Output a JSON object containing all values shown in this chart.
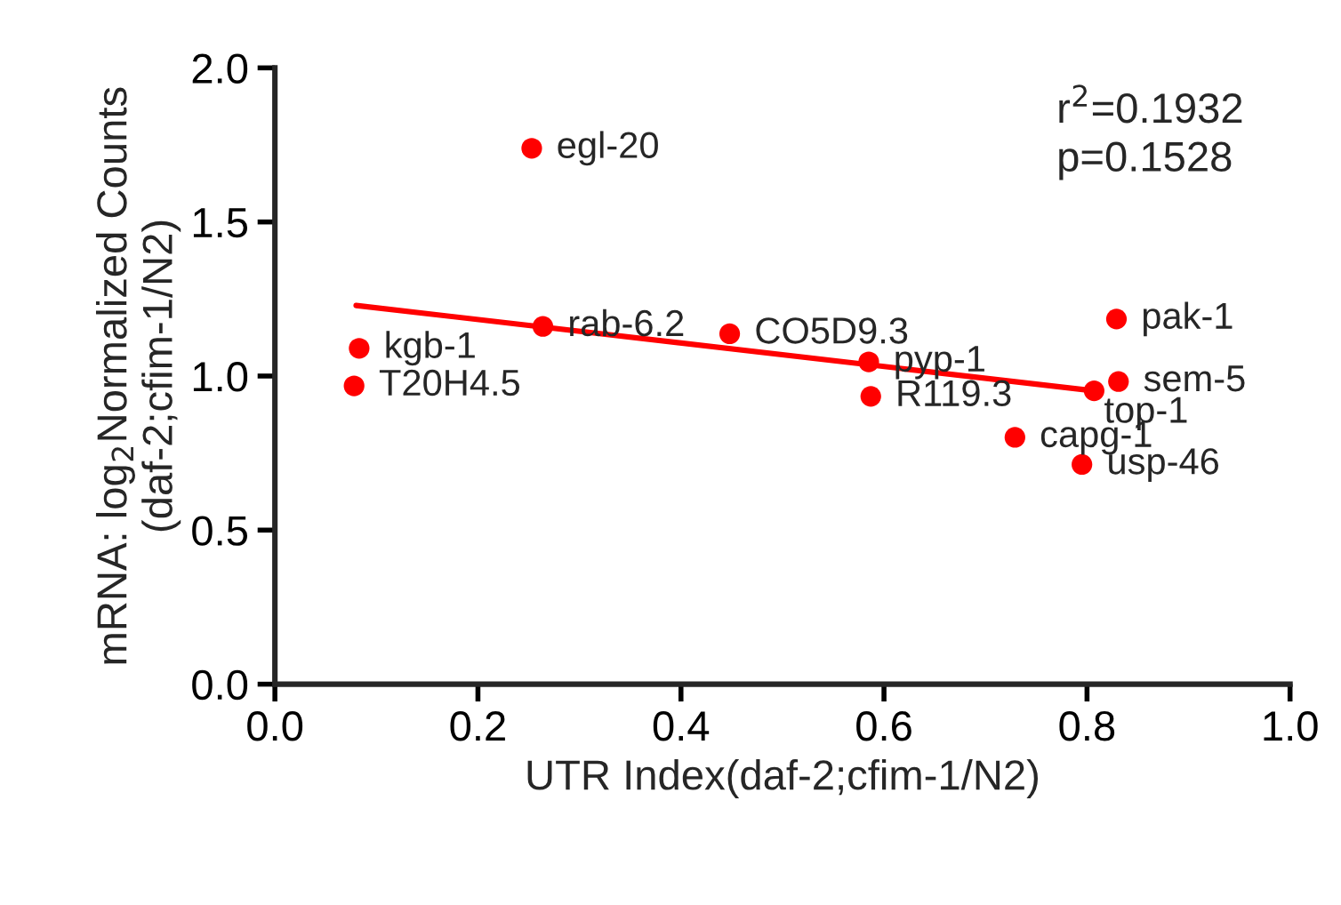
{
  "chart_data": {
    "type": "scatter",
    "xlabel": "UTR Index(daf-2;cfim-1/N2)",
    "ylabel": "mRNA: log$_{2}$Normalized Counts\n(daf-2;cfim-1/N2)",
    "x": [
      0.253,
      0.264,
      0.448,
      0.083,
      0.078,
      0.585,
      0.587,
      0.829,
      0.831,
      0.807,
      0.729,
      0.795
    ],
    "series": [
      {
        "color": "#ff0000",
        "values": [
          1.739,
          1.161,
          1.137,
          1.09,
          0.968,
          1.046,
          0.934,
          1.185,
          0.982,
          0.952,
          0.801,
          0.713
        ]
      },
      {
        "type": "line",
        "marker": "none",
        "color": "#ff0000",
        "x": [
          0.08,
          0.807
        ],
        "values": [
          1.229,
          0.952
        ]
      }
    ],
    "annotations": [
      {
        "text": "egl-20",
        "x": 0.253,
        "y": 1.739
      },
      {
        "text": "rab-6.2",
        "x": 0.264,
        "y": 1.161
      },
      {
        "text": "CO5D9.3",
        "x": 0.448,
        "y": 1.137
      },
      {
        "text": "kgb-1",
        "x": 0.083,
        "y": 1.09
      },
      {
        "text": "T20H4.5",
        "x": 0.078,
        "y": 0.968
      },
      {
        "text": "pyp-1",
        "x": 0.585,
        "y": 1.046
      },
      {
        "text": "R119.3",
        "x": 0.587,
        "y": 0.934
      },
      {
        "text": "pak-1",
        "x": 0.829,
        "y": 1.185
      },
      {
        "text": "sem-5",
        "x": 0.831,
        "y": 0.982
      },
      {
        "text": "top-1",
        "x": 0.807,
        "y": 0.952
      },
      {
        "text": "capg-1",
        "x": 0.729,
        "y": 0.801
      },
      {
        "text": "usp-46",
        "x": 0.795,
        "y": 0.713
      },
      "r$^{2}$=0.1932\np=0.1528"
    ],
    "xlim": [
      0.0,
      1.0
    ],
    "xticks": [
      {
        "value": 0.0,
        "label": "0.0"
      },
      0.2,
      0.4,
      0.6,
      0.8,
      {
        "value": 1.0,
        "label": "1.0"
      }
    ],
    "ylim": [
      0.0,
      2.0
    ],
    "yticks": [
      {
        "value": 0.0,
        "label": "0.0"
      },
      0.5,
      {
        "value": 1.0,
        "label": "1.0"
      },
      1.5,
      {
        "value": 2.0,
        "label": "2.0"
      }
    ],
    "marker": "circle",
    "grid": false,
    "legend": false
  }
}
